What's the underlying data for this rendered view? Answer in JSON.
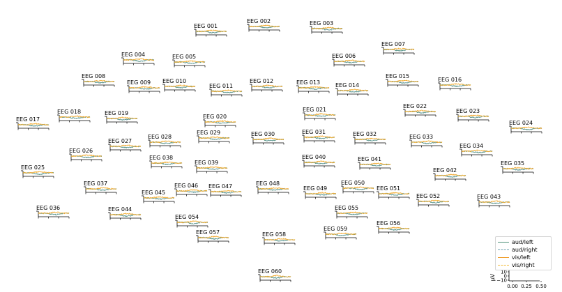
{
  "colors": {
    "aud/left": "#4c8f76",
    "aud/right": "#6e9fae",
    "vis/left": "#f0a132",
    "vis/right": "#f2b830"
  },
  "chart_data": {
    "type": "line",
    "title": "",
    "series": [
      {
        "name": "aud/left",
        "style": "solid"
      },
      {
        "name": "aud/right",
        "style": "dashed"
      },
      {
        "name": "vis/left",
        "style": "solid"
      },
      {
        "name": "vis/right",
        "style": "dashed"
      }
    ],
    "channels": [
      "EEG 001",
      "EEG 002",
      "EEG 003",
      "EEG 004",
      "EEG 005",
      "EEG 006",
      "EEG 007",
      "EEG 008",
      "EEG 009",
      "EEG 010",
      "EEG 011",
      "EEG 012",
      "EEG 013",
      "EEG 014",
      "EEG 015",
      "EEG 016",
      "EEG 017",
      "EEG 018",
      "EEG 019",
      "EEG 020",
      "EEG 021",
      "EEG 022",
      "EEG 023",
      "EEG 024",
      "EEG 025",
      "EEG 026",
      "EEG 027",
      "EEG 028",
      "EEG 029",
      "EEG 030",
      "EEG 031",
      "EEG 032",
      "EEG 033",
      "EEG 034",
      "EEG 035",
      "EEG 036",
      "EEG 037",
      "EEG 038",
      "EEG 039",
      "EEG 040",
      "EEG 041",
      "EEG 042",
      "EEG 043",
      "EEG 044",
      "EEG 045",
      "EEG 046",
      "EEG 047",
      "EEG 048",
      "EEG 049",
      "EEG 050",
      "EEG 051",
      "EEG 052",
      "EEG 054",
      "EEG 055",
      "EEG 056",
      "EEG 057",
      "EEG 058",
      "EEG 059",
      "EEG 060"
    ],
    "scale": {
      "ylabel": "µV",
      "yticks": [
        "10",
        "0",
        "−10"
      ],
      "xticks": [
        "0.00",
        "0.25",
        "0.50"
      ]
    },
    "legend_position": "lower-right"
  }
}
